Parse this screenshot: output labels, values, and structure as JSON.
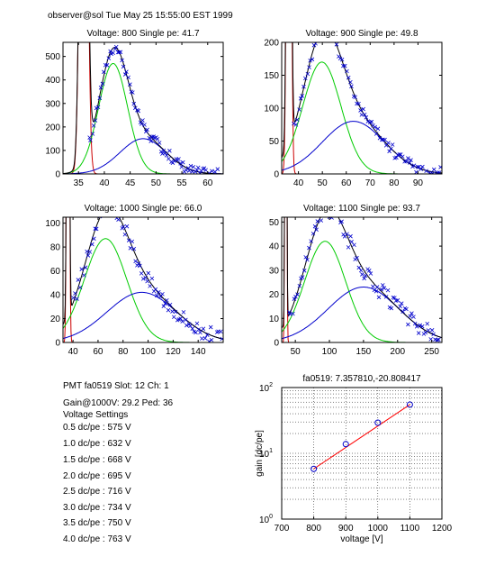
{
  "header": "observer@sol  Tue May 25 15:55:00 EST 1999",
  "colors": {
    "fit_total": "#000000",
    "fit_pedestal": "#cc0000",
    "fit_single": "#00cc00",
    "fit_double": "#0000cc",
    "data": "#0000cc",
    "gain_line": "#ff0000",
    "gain_points": "#0000cc"
  },
  "info": {
    "pmt_line": "PMT fa0519 Slot: 12 Ch: 1",
    "gain_line": "Gain@1000V: 29.2 Ped: 36",
    "settings_title": "Voltage Settings",
    "settings": [
      "0.5 dc/pe : 575 V",
      "1.0 dc/pe : 632 V",
      "1.5 dc/pe : 668 V",
      "2.0 dc/pe : 695 V",
      "2.5 dc/pe : 716 V",
      "3.0 dc/pe : 734 V",
      "3.5 dc/pe : 750 V",
      "4.0 dc/pe : 763 V"
    ]
  },
  "chart_data": [
    {
      "type": "line",
      "title": "Voltage: 800 Single pe: 41.7",
      "xlim": [
        32,
        63
      ],
      "ylim": [
        0,
        560
      ],
      "xticks": [
        35,
        40,
        45,
        50,
        55,
        60
      ],
      "yticks": [
        0,
        100,
        200,
        300,
        400,
        500
      ],
      "ped_mu": 36,
      "ped_sigma": 0.6,
      "ped_amp": 3000,
      "g1_mu": 41.7,
      "g1_sigma": 2.8,
      "g1_amp": 470,
      "g2_mu": 47.5,
      "g2_sigma": 4.5,
      "g2_amp": 150,
      "x_cut": 37,
      "data_sigma": 22
    },
    {
      "type": "line",
      "title": "Voltage: 900 Single pe: 49.8",
      "xlim": [
        33,
        100
      ],
      "ylim": [
        0,
        200
      ],
      "xticks": [
        40,
        50,
        60,
        70,
        80,
        90
      ],
      "yticks": [
        0,
        50,
        100,
        150,
        200
      ],
      "ped_mu": 36,
      "ped_sigma": 0.7,
      "ped_amp": 1500,
      "g1_mu": 49.8,
      "g1_sigma": 8,
      "g1_amp": 170,
      "g2_mu": 63,
      "g2_sigma": 13,
      "g2_amp": 80,
      "x_cut": 38,
      "data_sigma": 9
    },
    {
      "type": "line",
      "title": "Voltage: 1000 Single pe: 66.0",
      "xlim": [
        32,
        160
      ],
      "ylim": [
        0,
        105
      ],
      "xticks": [
        40,
        60,
        80,
        100,
        120,
        140
      ],
      "yticks": [
        0,
        20,
        40,
        60,
        80,
        100
      ],
      "ped_mu": 36,
      "ped_sigma": 0.8,
      "ped_amp": 800,
      "g1_mu": 66,
      "g1_sigma": 17,
      "g1_amp": 87,
      "g2_mu": 95,
      "g2_sigma": 28,
      "g2_amp": 42,
      "x_cut": 40,
      "data_sigma": 7
    },
    {
      "type": "line",
      "title": "Voltage: 1100 Single pe: 93.7",
      "xlim": [
        30,
        265
      ],
      "ylim": [
        0,
        52
      ],
      "xticks": [
        50,
        100,
        150,
        200,
        250
      ],
      "yticks": [
        0,
        10,
        20,
        30,
        40,
        50
      ],
      "ped_mu": 36,
      "ped_sigma": 1,
      "ped_amp": 400,
      "g1_mu": 93.7,
      "g1_sigma": 30,
      "g1_amp": 42,
      "g2_mu": 150,
      "g2_sigma": 52,
      "g2_amp": 23,
      "x_cut": 40,
      "data_sigma": 3.5
    },
    {
      "type": "scatter",
      "title": "fa0519: 7.357810,-20.808417",
      "xlabel": "voltage [V]",
      "ylabel": "gain [dc/pe]",
      "xlim": [
        700,
        1200
      ],
      "ylim": [
        1,
        100
      ],
      "yscale": "log",
      "xticks": [
        700,
        800,
        900,
        1000,
        1100,
        1200
      ],
      "ytick_labels": [
        {
          "value": 1,
          "base": "10",
          "exp": "0"
        },
        {
          "value": 10,
          "base": "10",
          "exp": "1"
        },
        {
          "value": 100,
          "base": "10",
          "exp": "2"
        }
      ],
      "grid": true,
      "x": [
        800,
        900,
        1000,
        1100
      ],
      "y": [
        5.8,
        13.8,
        29.2,
        55.0
      ],
      "fit": {
        "x": [
          800,
          1100
        ],
        "y": [
          5.8,
          55.0
        ]
      }
    }
  ]
}
